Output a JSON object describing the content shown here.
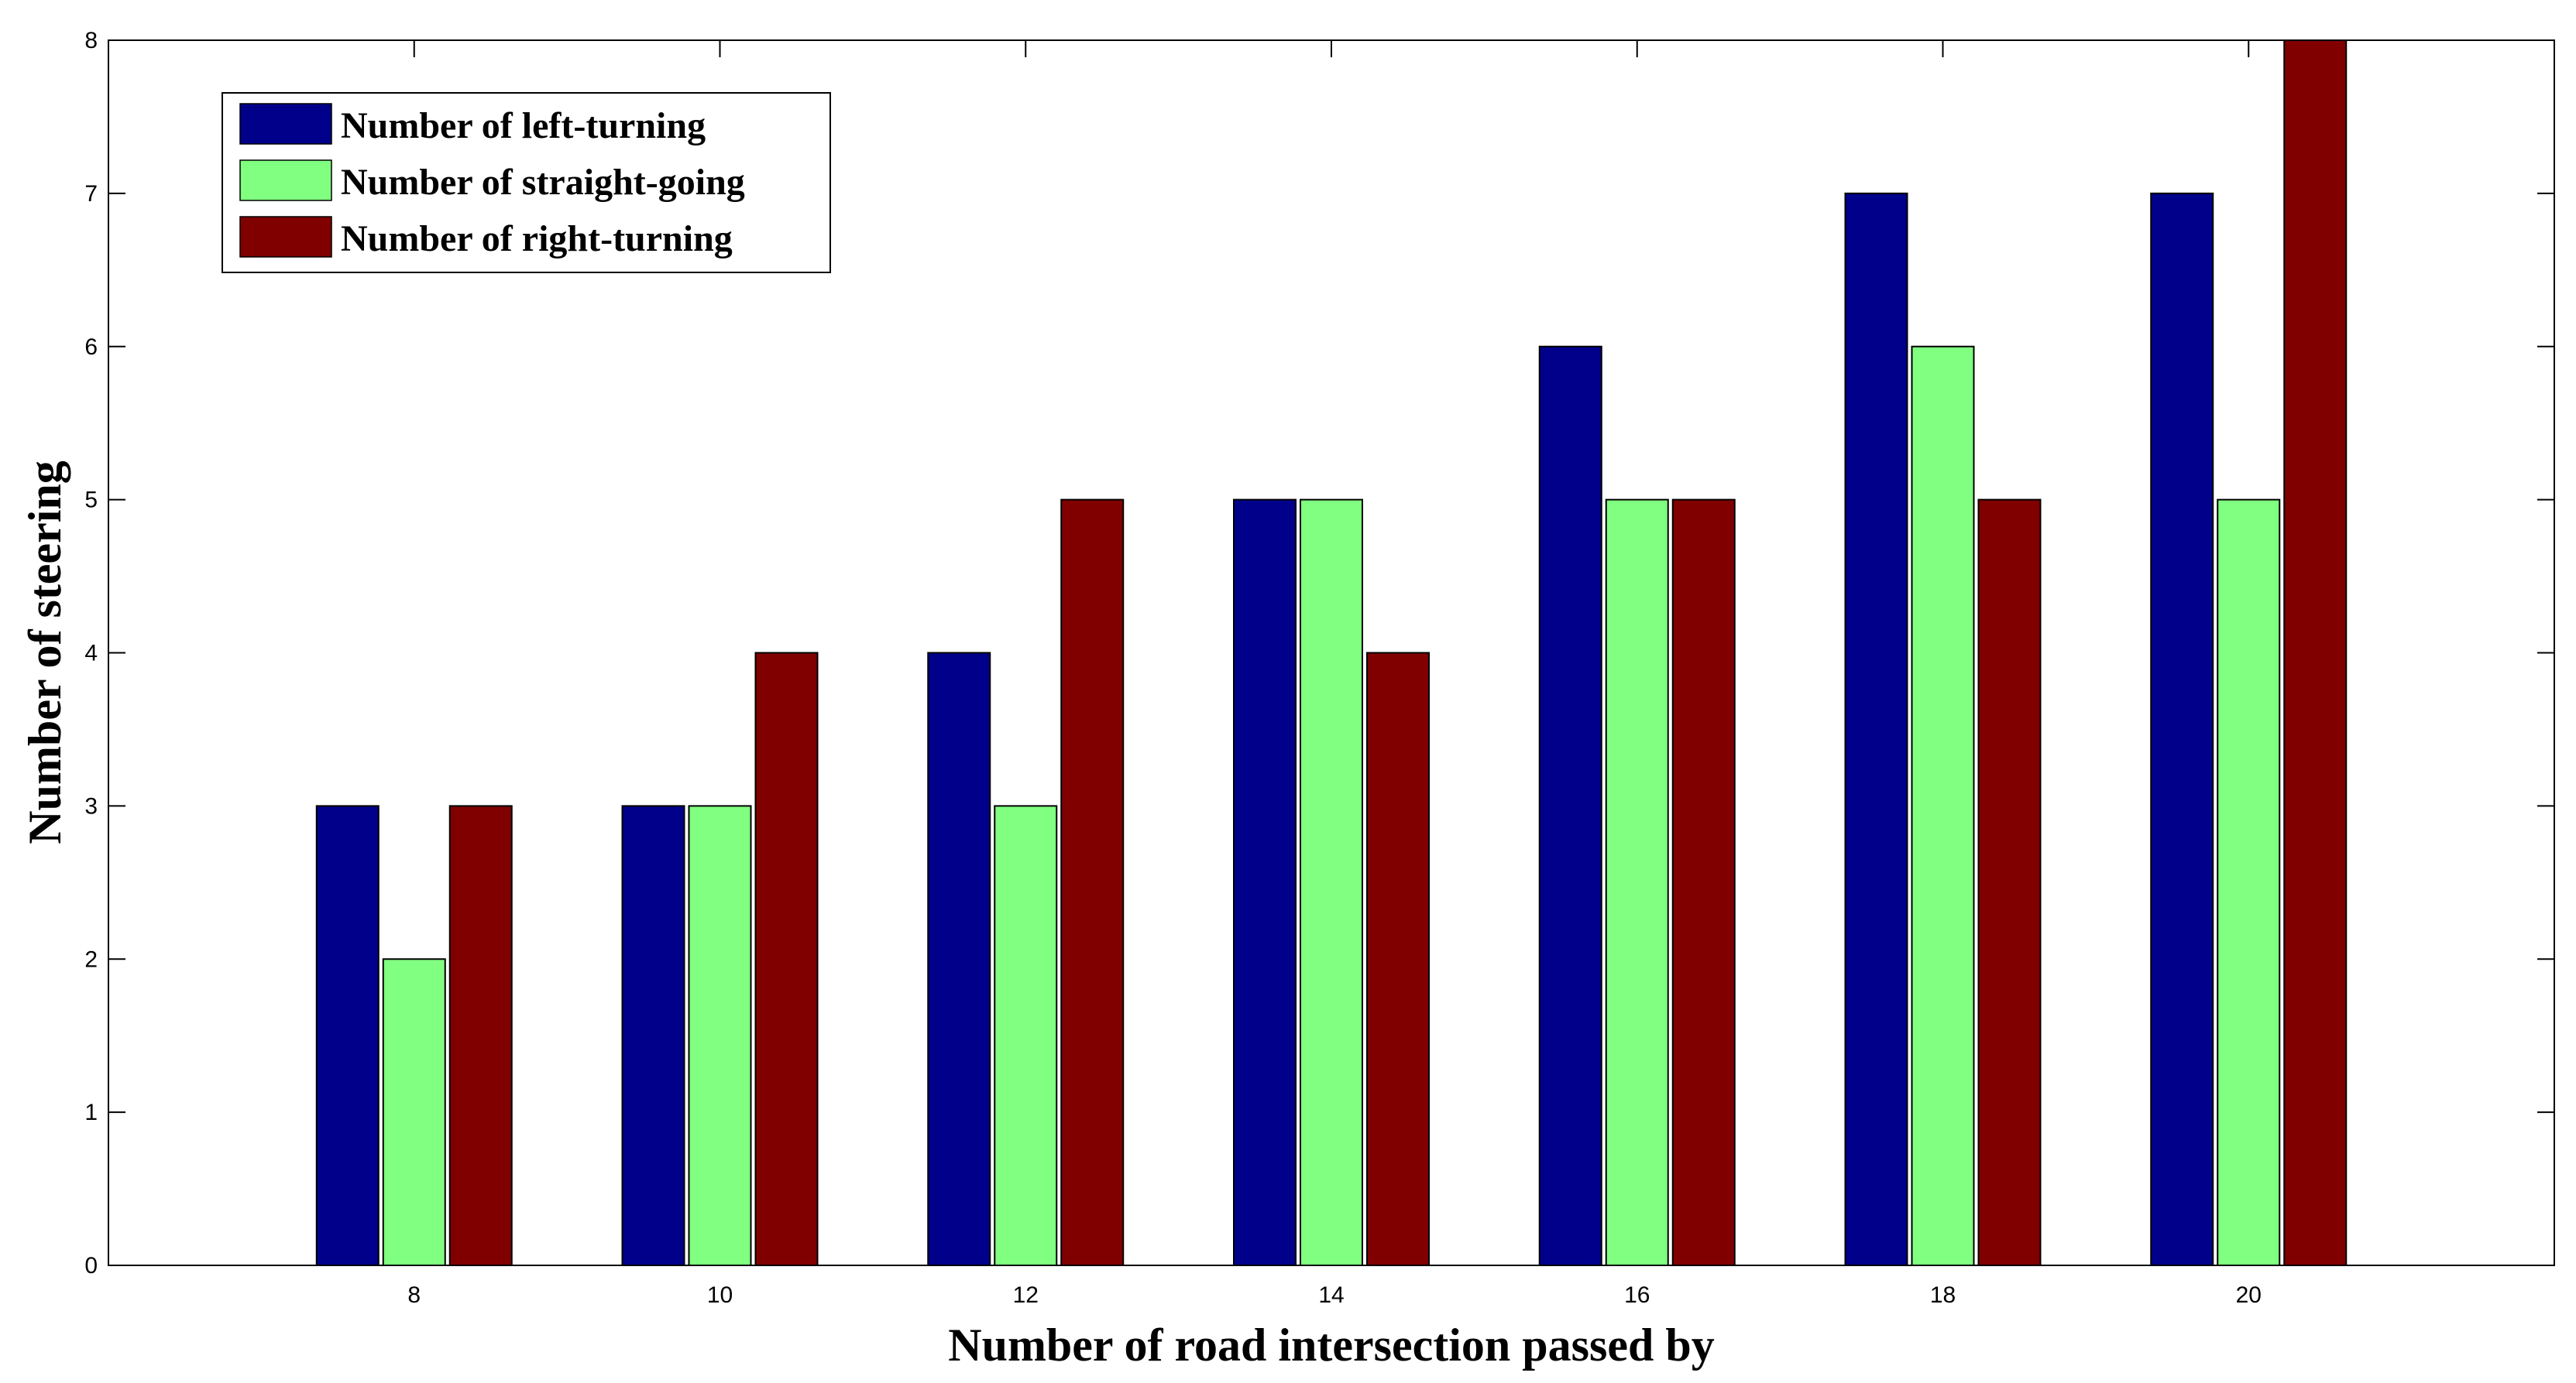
{
  "chart_data": {
    "type": "bar",
    "title": "",
    "xlabel": "Number of road intersection passed by",
    "ylabel": "Number of steering",
    "categories": [
      "8",
      "10",
      "12",
      "14",
      "16",
      "18",
      "20"
    ],
    "series": [
      {
        "name": "Number of left-turning",
        "color": "#00008B",
        "values": [
          3,
          3,
          4,
          5,
          6,
          7,
          7
        ]
      },
      {
        "name": "Number of straight-going",
        "color": "#80FF80",
        "values": [
          2,
          3,
          3,
          5,
          5,
          6,
          5
        ]
      },
      {
        "name": "Number of right-turning",
        "color": "#800000",
        "values": [
          3,
          4,
          5,
          4,
          5,
          5,
          8
        ]
      }
    ],
    "ylim": [
      0,
      8
    ],
    "yticks": [
      "0",
      "1",
      "2",
      "3",
      "4",
      "5",
      "6",
      "7",
      "8"
    ],
    "grid": false,
    "legend_position": "top-left"
  }
}
